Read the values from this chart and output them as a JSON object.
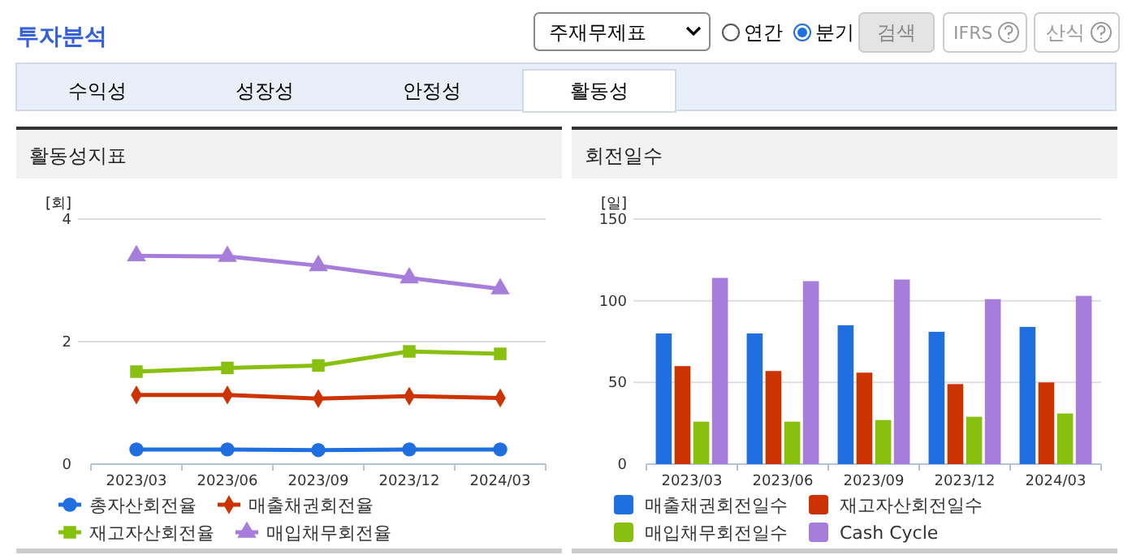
{
  "chart_data": [
    {
      "type": "other",
      "title": "투자분석",
      "annotations": [
        "주재무제표",
        "연간",
        "분기",
        "검색",
        "IFRS",
        "산식",
        "수익성",
        "성장성",
        "안정성",
        "활동성"
      ]
    },
    {
      "type": "line",
      "title": "활동성지표",
      "ylabel": "[회]",
      "categories": [
        "2023/03",
        "2023/06",
        "2023/09",
        "2023/12",
        "2024/03"
      ],
      "ylim": [
        0,
        4
      ],
      "yticks": [
        0,
        2,
        4
      ],
      "grid": "y",
      "legend": "bottom",
      "series": [
        {
          "name": "총자산회전율",
          "color": "#1f6fe0",
          "marker": "circle",
          "values": [
            0.24,
            0.24,
            0.23,
            0.24,
            0.24
          ]
        },
        {
          "name": "매출채권회전율",
          "color": "#cc3300",
          "marker": "diamond",
          "values": [
            1.13,
            1.13,
            1.07,
            1.11,
            1.08
          ]
        },
        {
          "name": "재고자산회전율",
          "color": "#88c010",
          "marker": "square",
          "values": [
            1.51,
            1.57,
            1.61,
            1.84,
            1.8
          ]
        },
        {
          "name": "매입채무회전율",
          "color": "#a77ddb",
          "marker": "triangle",
          "values": [
            3.4,
            3.39,
            3.24,
            3.04,
            2.86
          ]
        }
      ]
    },
    {
      "type": "bar",
      "title": "회전일수",
      "ylabel": "[일]",
      "categories": [
        "2023/03",
        "2023/06",
        "2023/09",
        "2023/12",
        "2024/03"
      ],
      "ylim": [
        0,
        150
      ],
      "yticks": [
        0,
        50,
        100,
        150
      ],
      "grid": "y",
      "legend": "bottom",
      "series": [
        {
          "name": "매출채권회전일수",
          "color": "#1f6fe0",
          "values": [
            80,
            80,
            85,
            81,
            84
          ]
        },
        {
          "name": "재고자산회전일수",
          "color": "#cc3300",
          "values": [
            60,
            57,
            56,
            49,
            50
          ]
        },
        {
          "name": "매입채무회전일수",
          "color": "#88c010",
          "values": [
            26,
            26,
            27,
            29,
            31
          ]
        },
        {
          "name": "Cash Cycle",
          "color": "#a77ddb",
          "values": [
            114,
            112,
            113,
            101,
            103
          ]
        }
      ]
    }
  ]
}
